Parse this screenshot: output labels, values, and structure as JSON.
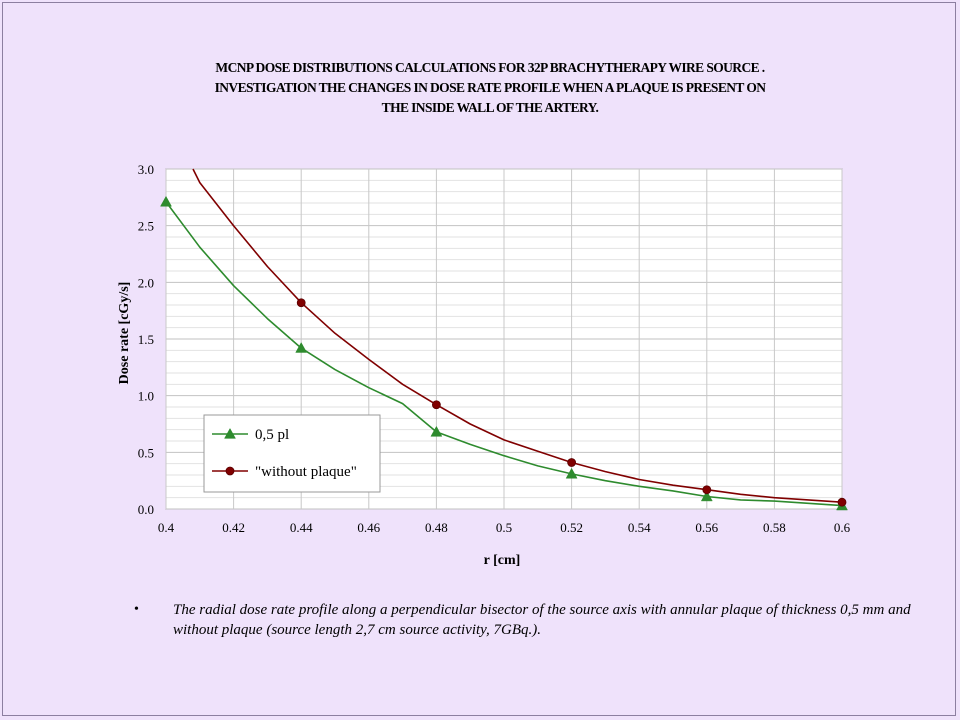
{
  "titles": {
    "line1": "MCNP  DOSE DISTRIBUTIONS  CALCULATIONS    FOR 32P  BRACHYTHERAPY WIRE SOURCE .",
    "line2": "INVESTIGATION THE CHANGES  IN DOSE RATE PROFILE  WHEN A  PLAQUE IS  PRESENT ON",
    "line3": "THE INSIDE WALL OF THE ARTERY."
  },
  "bullet": {
    "symbol": "•",
    "text": "The radial dose rate profile along a perpendicular bisector of the source axis with annular plaque  of thickness 0,5 mm   and without plaque (source length 2,7 cm source activity, 7GBq.)."
  },
  "chart_data": {
    "type": "line",
    "title": "",
    "xlabel": "r [cm]",
    "ylabel": "Dose rate  [cGy/s]",
    "xlim": [
      0.4,
      0.6
    ],
    "ylim": [
      0.0,
      3.0
    ],
    "x_ticks": [
      "0.4",
      "0.42",
      "0.44",
      "0.46",
      "0.48",
      "0.5",
      "0.52",
      "0.54",
      "0.56",
      "0.58",
      "0.6"
    ],
    "y_ticks": [
      "0.0",
      "0.5",
      "1.0",
      "1.5",
      "2.0",
      "2.5",
      "3.0"
    ],
    "grid": true,
    "legend_position": "lower-left",
    "series": [
      {
        "name": "0,5 pl",
        "color": "#2e8b2e",
        "marker": "triangle",
        "x": [
          0.4,
          0.41,
          0.42,
          0.43,
          0.44,
          0.45,
          0.46,
          0.47,
          0.48,
          0.49,
          0.5,
          0.51,
          0.52,
          0.53,
          0.54,
          0.55,
          0.56,
          0.57,
          0.58,
          0.59,
          0.6
        ],
        "y": [
          2.71,
          2.31,
          1.97,
          1.68,
          1.42,
          1.23,
          1.07,
          0.93,
          0.68,
          0.57,
          0.47,
          0.38,
          0.31,
          0.25,
          0.2,
          0.16,
          0.11,
          0.08,
          0.07,
          0.05,
          0.03
        ],
        "marker_x": [
          0.4,
          0.44,
          0.48,
          0.52,
          0.56,
          0.6
        ],
        "marker_y": [
          2.71,
          1.42,
          0.68,
          0.31,
          0.11,
          0.03
        ]
      },
      {
        "name": "\"without plaque\"",
        "color": "#800000",
        "marker": "circle",
        "x": [
          0.408,
          0.41,
          0.42,
          0.43,
          0.44,
          0.45,
          0.46,
          0.47,
          0.48,
          0.49,
          0.5,
          0.51,
          0.52,
          0.53,
          0.54,
          0.55,
          0.56,
          0.57,
          0.58,
          0.59,
          0.6
        ],
        "y": [
          3.0,
          2.88,
          2.5,
          2.14,
          1.82,
          1.55,
          1.32,
          1.1,
          0.92,
          0.75,
          0.61,
          0.51,
          0.41,
          0.33,
          0.26,
          0.21,
          0.17,
          0.13,
          0.1,
          0.08,
          0.06
        ],
        "marker_x": [
          0.44,
          0.48,
          0.52,
          0.56,
          0.6
        ],
        "marker_y": [
          1.82,
          0.92,
          0.41,
          0.17,
          0.06
        ]
      }
    ]
  }
}
